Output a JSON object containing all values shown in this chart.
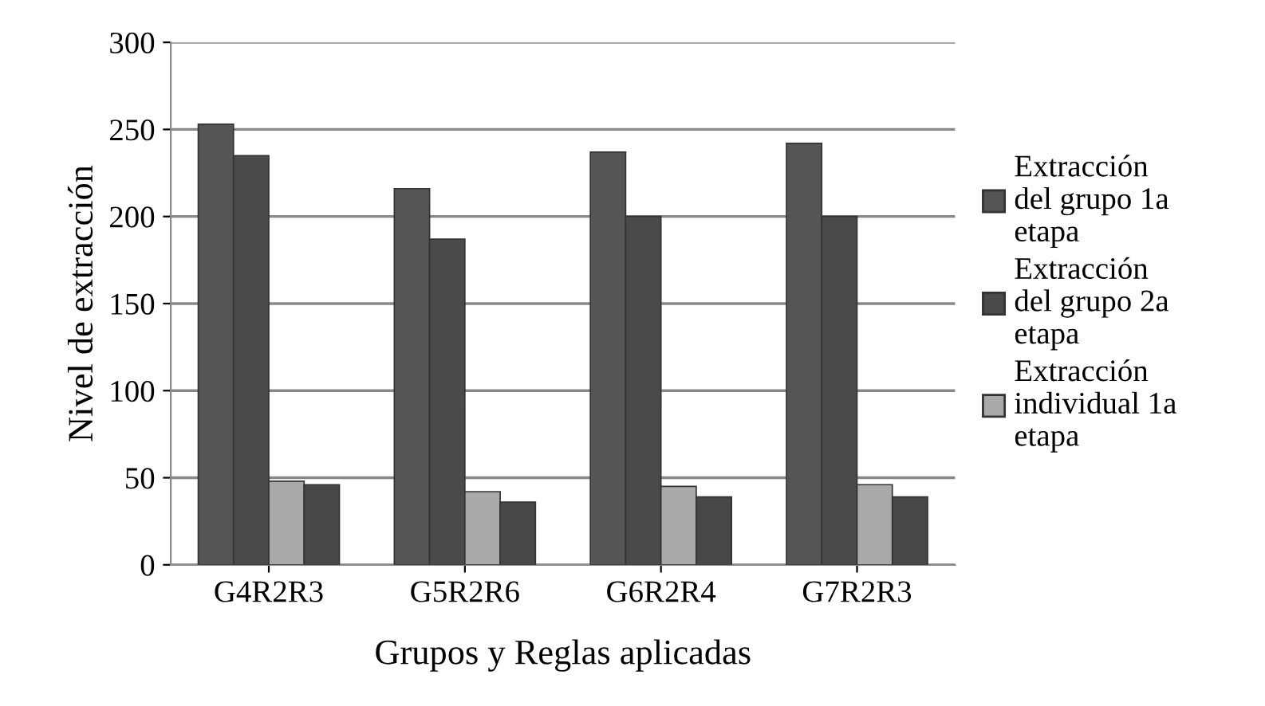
{
  "chart_data": {
    "type": "bar",
    "xlabel": "Grupos y Reglas aplicadas",
    "ylabel": "Nivel de extracción",
    "categories": [
      "G4R2R3",
      "G5R2R6",
      "G6R2R4",
      "G7R2R3"
    ],
    "series": [
      {
        "name": "Extracción del grupo 1a etapa",
        "color": "#555555",
        "values": [
          253,
          216,
          237,
          242
        ]
      },
      {
        "name": "Extracción del grupo 2a etapa",
        "color": "#4a4a4a",
        "values": [
          235,
          187,
          200,
          200
        ]
      },
      {
        "name": "Extracción individual 1a etapa",
        "color": "#a9a9a9",
        "values": [
          48,
          42,
          45,
          46
        ]
      },
      {
        "color": "#474747",
        "values": [
          46,
          36,
          39,
          39
        ]
      }
    ],
    "ylim": [
      0,
      300
    ],
    "yticks": [
      0,
      50,
      100,
      150,
      200,
      250,
      300
    ],
    "grid": "y",
    "legend": "right"
  }
}
